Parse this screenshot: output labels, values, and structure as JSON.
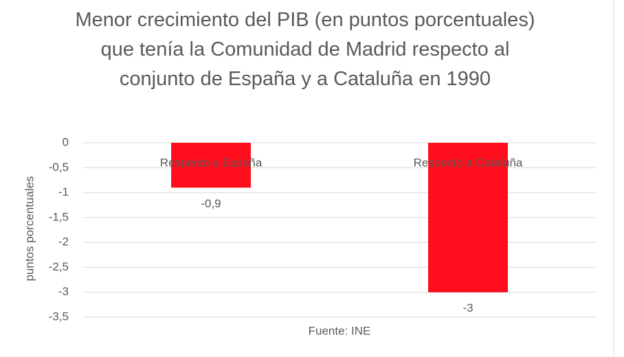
{
  "chart_data": {
    "type": "bar",
    "title": "Menor crecimiento del PIB (en puntos porcentuales) que tenía la Comunidad de Madrid respecto al conjunto de España y a Cataluña en 1990",
    "x_label": "Fuente: INE",
    "y_label": "puntos porcentuales",
    "categories": [
      "Respecto a España",
      "Respecto a Cataluña"
    ],
    "values": [
      -0.9,
      -3
    ],
    "value_labels": [
      "-0,9",
      "-3"
    ],
    "color": "#ff0d1c",
    "ylim": [
      -3.5,
      0
    ],
    "yticks": [
      0,
      {
        "value": -0.5,
        "label": "-0,5"
      },
      -1,
      {
        "value": -1.5,
        "label": "-1,5"
      },
      -2,
      {
        "value": -2.5,
        "label": "-2,5"
      },
      -3,
      {
        "value": -3.5,
        "label": "-3,5"
      }
    ],
    "grid": true
  }
}
